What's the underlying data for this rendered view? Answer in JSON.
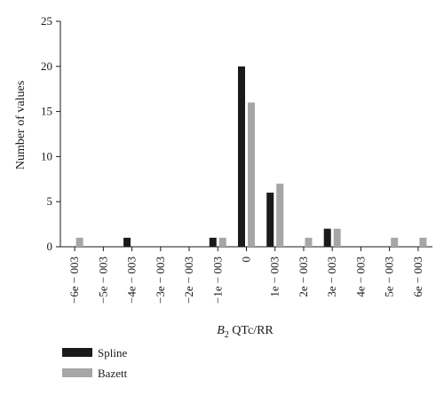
{
  "chart_data": {
    "type": "bar",
    "xlabel_symbol": "B",
    "xlabel_subscript": "2",
    "xlabel_rest": " QTc/RR",
    "ylabel": "Number of values",
    "ylim": [
      0,
      25
    ],
    "yticks": [
      0,
      5,
      10,
      15,
      20,
      25
    ],
    "categories": [
      "−6e − 003",
      "−5e − 003",
      "−4e − 003",
      "−3e − 003",
      "−2e − 003",
      "−1e − 003",
      "0",
      "1e − 003",
      "2e − 003",
      "3e − 003",
      "4e − 003",
      "5e − 003",
      "6e − 003"
    ],
    "series": [
      {
        "name": "Spline",
        "color": "#1a1a1a",
        "values": [
          0,
          0,
          1,
          0,
          0,
          1,
          20,
          6,
          0,
          2,
          0,
          0,
          0
        ]
      },
      {
        "name": "Bazett",
        "color": "#a6a6a6",
        "values": [
          1,
          0,
          0,
          0,
          0,
          1,
          16,
          7,
          1,
          2,
          0,
          1,
          1
        ]
      }
    ],
    "grid": false,
    "legend_position": "bottom-left"
  }
}
